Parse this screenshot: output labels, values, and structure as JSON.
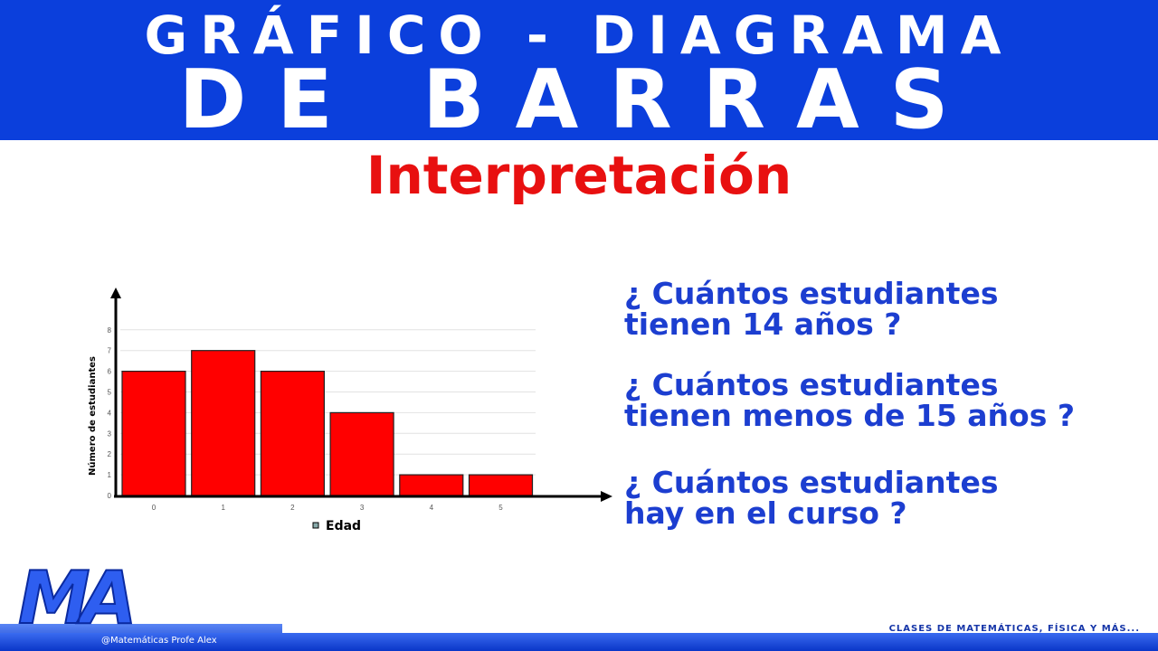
{
  "header": {
    "line1": "GRÁFICO - DIAGRAMA",
    "line2": "DE BARRAS"
  },
  "subtitle": "Interpretación",
  "questions": [
    {
      "l1": "¿ Cuántos estudiantes",
      "l2": "tienen 14 años ?"
    },
    {
      "l1": "¿ Cuántos estudiantes",
      "l2": "tienen menos de 15 años ?"
    },
    {
      "l1": "¿ Cuántos estudiantes",
      "l2": "hay en el curso ?"
    }
  ],
  "footer": {
    "social": "@Matemáticas Profe Alex",
    "tagline": "CLASES DE MATEMÁTICAS, FÍSICA Y MÁS...",
    "logo": "MA"
  },
  "colors": {
    "header": "#0b3fdc",
    "bar": "#ff0000",
    "question": "#1c3ed0",
    "subtitle": "#e81010"
  },
  "chart_data": {
    "type": "bar",
    "categories": [
      "0",
      "1",
      "2",
      "3",
      "4",
      "5"
    ],
    "values": [
      6,
      7,
      6,
      4,
      1,
      1
    ],
    "ylabel": "Número de estudiantes",
    "legend": "Edad",
    "legend_placement": "bottom",
    "ylim": [
      0,
      8
    ],
    "yticks": [
      "0",
      "1",
      "2",
      "3",
      "4",
      "5",
      "6",
      "7",
      "8"
    ],
    "grid": true
  }
}
